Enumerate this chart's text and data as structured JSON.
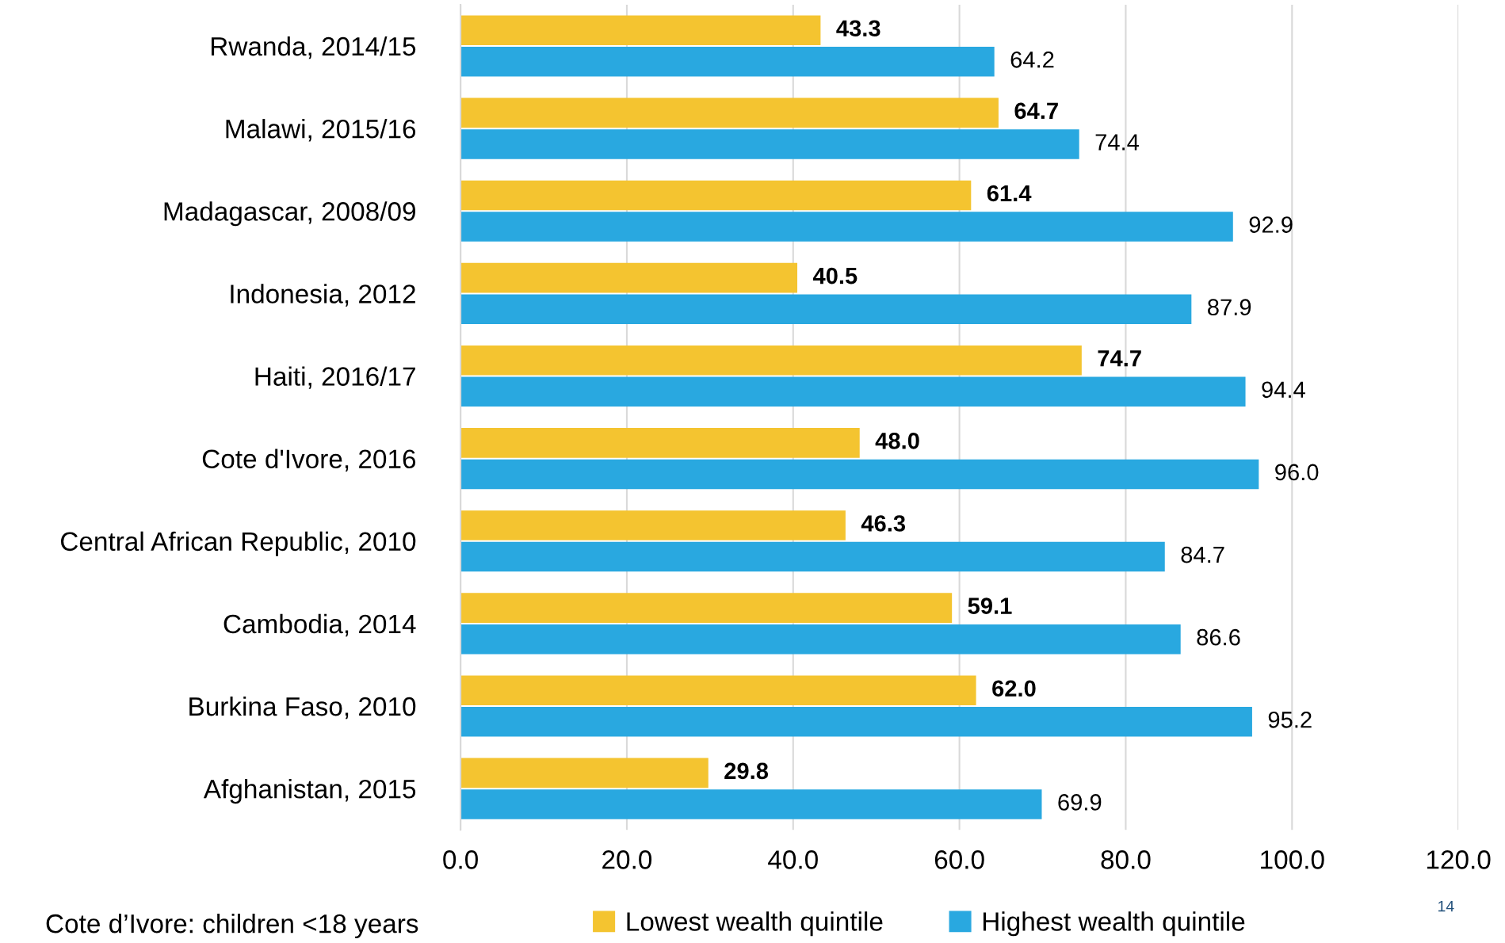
{
  "chart_data": {
    "type": "bar",
    "orientation": "horizontal",
    "categories": [
      "Rwanda, 2014/15",
      "Malawi, 2015/16",
      "Madagascar, 2008/09",
      "Indonesia, 2012",
      "Haiti, 2016/17",
      "Cote d'Ivore, 2016",
      "Central African Republic, 2010",
      "Cambodia, 2014",
      "Burkina Faso, 2010",
      "Afghanistan, 2015"
    ],
    "series": [
      {
        "name": "Lowest wealth quintile",
        "color": "#f4c430",
        "values": [
          43.3,
          64.7,
          61.4,
          40.5,
          74.7,
          48.0,
          46.3,
          59.1,
          62.0,
          29.8
        ],
        "value_labels": [
          "43.3",
          "64.7",
          "61.4",
          "40.5",
          "74.7",
          "48.0",
          "46.3",
          "59.1",
          "62.0",
          "29.8"
        ]
      },
      {
        "name": "Highest wealth quintile",
        "color": "#29a8e0",
        "values": [
          64.2,
          74.4,
          92.9,
          87.9,
          94.4,
          96.0,
          84.7,
          86.6,
          95.2,
          69.9
        ],
        "value_labels": [
          "64.2",
          "74.4",
          "92.9",
          "87.9",
          "94.4",
          "96.0",
          "84.7",
          "86.6",
          "95.2",
          "69.9"
        ]
      }
    ],
    "xlim": [
      0,
      120
    ],
    "xticks": [
      {
        "value": 0,
        "label": "0.0"
      },
      {
        "value": 20,
        "label": "20.0"
      },
      {
        "value": 40,
        "label": "40.0"
      },
      {
        "value": 60,
        "label": "60.0"
      },
      {
        "value": 80,
        "label": "80.0"
      },
      {
        "value": 100,
        "label": "100.0"
      },
      {
        "value": 120,
        "label": "120.0"
      }
    ],
    "grid": "x",
    "legend": "bottom",
    "annotations": [
      "Cote d’Ivore: children <18 years",
      "14"
    ]
  }
}
